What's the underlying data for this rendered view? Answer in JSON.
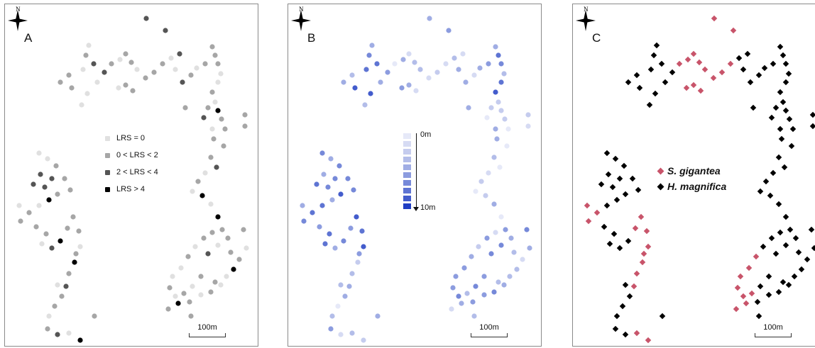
{
  "panels": {
    "a": {
      "label": "A"
    },
    "b": {
      "label": "B"
    },
    "c": {
      "label": "C"
    }
  },
  "scalebar_label": "100m",
  "north_label": "N",
  "legend_a": [
    {
      "label": "LRS = 0",
      "color": "#e0e0e0"
    },
    {
      "label": "0 < LRS < 2",
      "color": "#a6a6a6"
    },
    {
      "label": "2 < LRS < 4",
      "color": "#555555"
    },
    {
      "label": "LRS > 4",
      "color": "#000000"
    }
  ],
  "legend_b": {
    "top_label": "0m",
    "bottom_label": "10m",
    "ramp": [
      "#e6e9f8",
      "#d6dbf3",
      "#c5ccee",
      "#b3bde9",
      "#a0ade4",
      "#8c9cdf",
      "#7689d9",
      "#5e74d3",
      "#435ccc",
      "#1f3dc3"
    ]
  },
  "legend_c": [
    {
      "label": "S. gigantea",
      "color": "#c8546a"
    },
    {
      "label": "H. magnifica",
      "color": "#000000"
    }
  ],
  "colors": {
    "lrs_levels": [
      "#e0e0e0",
      "#a6a6a6",
      "#555555",
      "#000000"
    ],
    "depth_light": "#e6e9f8",
    "depth_dark": "#1f3dc3",
    "gigantea": "#c8546a",
    "magnifica": "#000000"
  }
}
